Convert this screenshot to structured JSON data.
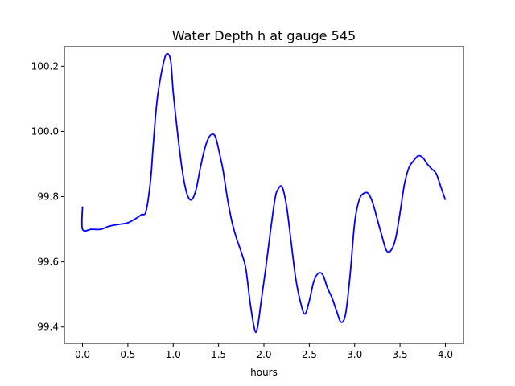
{
  "chart_data": {
    "type": "line",
    "title": "Water Depth h at gauge 545",
    "xlabel": "hours",
    "ylabel": "",
    "xlim": [
      -0.2,
      4.2
    ],
    "ylim": [
      99.35,
      100.26
    ],
    "grid": false,
    "line_color": "#0000ff",
    "x_ticks": [
      {
        "value": 0.0,
        "label": "0.0"
      },
      {
        "value": 0.5,
        "label": "0.5"
      },
      {
        "value": 1.0,
        "label": "1.0"
      },
      {
        "value": 1.5,
        "label": "1.5"
      },
      {
        "value": 2.0,
        "label": "2.0"
      },
      {
        "value": 2.5,
        "label": "2.5"
      },
      {
        "value": 3.0,
        "label": "3.0"
      },
      {
        "value": 3.5,
        "label": "3.5"
      },
      {
        "value": 4.0,
        "label": "4.0"
      }
    ],
    "y_ticks": [
      {
        "value": 99.4,
        "label": "99.4"
      },
      {
        "value": 99.6,
        "label": "99.6"
      },
      {
        "value": 99.8,
        "label": "99.8"
      },
      {
        "value": 100.0,
        "label": "100.0"
      },
      {
        "value": 100.2,
        "label": "100.2"
      }
    ],
    "series": [
      {
        "x": [
          0.0,
          0.0,
          0.1,
          0.2,
          0.3,
          0.4,
          0.5,
          0.6,
          0.65,
          0.7,
          0.75,
          0.78,
          0.82,
          0.87,
          0.92,
          0.97,
          1.0,
          1.05,
          1.1,
          1.15,
          1.2,
          1.25,
          1.3,
          1.35,
          1.4,
          1.45,
          1.48,
          1.52,
          1.55,
          1.6,
          1.65,
          1.7,
          1.75,
          1.8,
          1.85,
          1.9,
          1.93,
          1.97,
          2.02,
          2.07,
          2.12,
          2.15,
          2.2,
          2.25,
          2.3,
          2.35,
          2.4,
          2.45,
          2.5,
          2.55,
          2.6,
          2.65,
          2.7,
          2.75,
          2.8,
          2.85,
          2.9,
          2.95,
          3.0,
          3.05,
          3.1,
          3.15,
          3.2,
          3.25,
          3.3,
          3.35,
          3.4,
          3.45,
          3.5,
          3.55,
          3.6,
          3.65,
          3.7,
          3.75,
          3.8,
          3.85,
          3.9,
          3.95,
          4.0
        ],
        "y": [
          99.77,
          99.7,
          99.7,
          99.7,
          99.71,
          99.715,
          99.72,
          99.735,
          99.745,
          99.755,
          99.85,
          99.96,
          100.09,
          100.18,
          100.235,
          100.22,
          100.12,
          99.99,
          99.88,
          99.81,
          99.79,
          99.82,
          99.89,
          99.95,
          99.985,
          99.99,
          99.97,
          99.92,
          99.88,
          99.79,
          99.72,
          99.67,
          99.63,
          99.58,
          99.47,
          99.39,
          99.4,
          99.48,
          99.58,
          99.69,
          99.79,
          99.82,
          99.83,
          99.77,
          99.66,
          99.55,
          99.48,
          99.44,
          99.48,
          99.54,
          99.565,
          99.56,
          99.52,
          99.49,
          99.45,
          99.415,
          99.44,
          99.56,
          99.72,
          99.79,
          99.81,
          99.81,
          99.78,
          99.73,
          99.68,
          99.635,
          99.635,
          99.67,
          99.75,
          99.84,
          99.89,
          99.91,
          99.925,
          99.92,
          99.9,
          99.885,
          99.87,
          99.83,
          99.79
        ]
      }
    ]
  }
}
